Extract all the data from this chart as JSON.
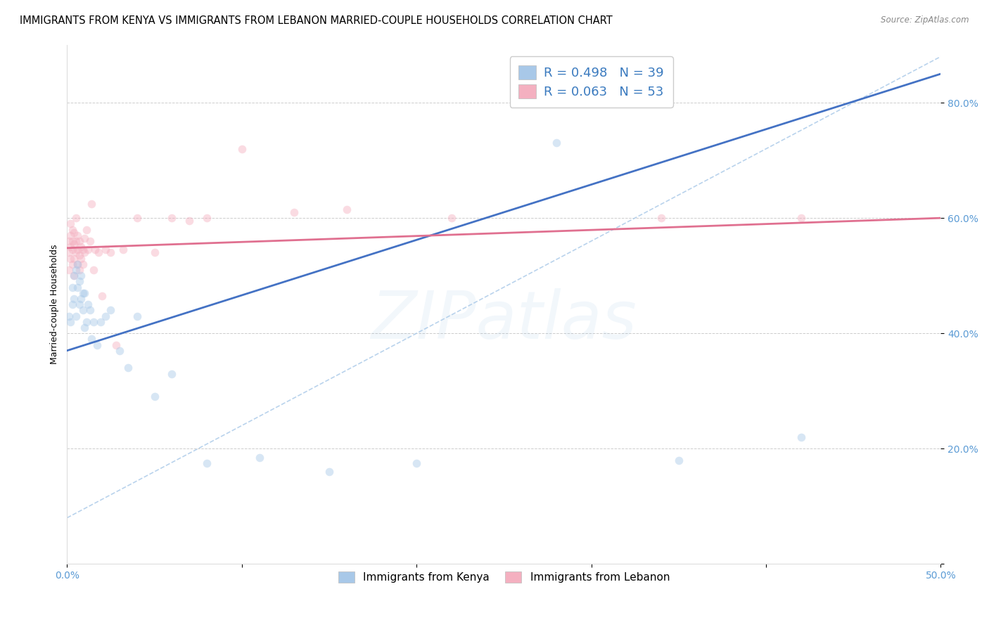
{
  "title": "IMMIGRANTS FROM KENYA VS IMMIGRANTS FROM LEBANON MARRIED-COUPLE HOUSEHOLDS CORRELATION CHART",
  "source": "Source: ZipAtlas.com",
  "ylabel": "Married-couple Households",
  "xlim": [
    0.0,
    0.5
  ],
  "ylim": [
    0.0,
    0.9
  ],
  "xtick_positions": [
    0.0,
    0.1,
    0.2,
    0.3,
    0.4,
    0.5
  ],
  "xticklabels": [
    "0.0%",
    "",
    "",
    "",
    "",
    "50.0%"
  ],
  "ytick_positions": [
    0.0,
    0.2,
    0.4,
    0.6,
    0.8
  ],
  "yticklabels": [
    "",
    "20.0%",
    "40.0%",
    "60.0%",
    "80.0%"
  ],
  "kenya_R": 0.498,
  "kenya_N": 39,
  "lebanon_R": 0.063,
  "lebanon_N": 53,
  "kenya_color": "#a8c8e8",
  "lebanon_color": "#f4b0c0",
  "kenya_line_color": "#4472c4",
  "lebanon_line_color": "#e07090",
  "diagonal_color": "#a8c8e8",
  "kenya_x": [
    0.001,
    0.002,
    0.003,
    0.003,
    0.004,
    0.004,
    0.005,
    0.005,
    0.006,
    0.006,
    0.007,
    0.007,
    0.008,
    0.008,
    0.009,
    0.009,
    0.01,
    0.01,
    0.011,
    0.012,
    0.013,
    0.014,
    0.015,
    0.017,
    0.019,
    0.022,
    0.025,
    0.03,
    0.035,
    0.04,
    0.05,
    0.06,
    0.08,
    0.11,
    0.15,
    0.2,
    0.28,
    0.35,
    0.42
  ],
  "kenya_y": [
    0.43,
    0.42,
    0.48,
    0.45,
    0.5,
    0.46,
    0.51,
    0.43,
    0.48,
    0.52,
    0.45,
    0.49,
    0.46,
    0.5,
    0.47,
    0.44,
    0.41,
    0.47,
    0.42,
    0.45,
    0.44,
    0.39,
    0.42,
    0.38,
    0.42,
    0.43,
    0.44,
    0.37,
    0.34,
    0.43,
    0.29,
    0.33,
    0.175,
    0.185,
    0.16,
    0.175,
    0.73,
    0.18,
    0.22
  ],
  "lebanon_x": [
    0.001,
    0.001,
    0.001,
    0.002,
    0.002,
    0.002,
    0.002,
    0.003,
    0.003,
    0.003,
    0.003,
    0.004,
    0.004,
    0.004,
    0.004,
    0.005,
    0.005,
    0.005,
    0.006,
    0.006,
    0.006,
    0.007,
    0.007,
    0.007,
    0.008,
    0.008,
    0.009,
    0.009,
    0.01,
    0.01,
    0.011,
    0.012,
    0.013,
    0.014,
    0.015,
    0.016,
    0.018,
    0.02,
    0.022,
    0.025,
    0.028,
    0.032,
    0.04,
    0.05,
    0.06,
    0.07,
    0.08,
    0.1,
    0.13,
    0.16,
    0.22,
    0.34,
    0.42
  ],
  "lebanon_y": [
    0.54,
    0.56,
    0.51,
    0.53,
    0.55,
    0.57,
    0.59,
    0.52,
    0.545,
    0.56,
    0.58,
    0.5,
    0.53,
    0.555,
    0.575,
    0.54,
    0.56,
    0.6,
    0.52,
    0.545,
    0.57,
    0.51,
    0.535,
    0.56,
    0.53,
    0.55,
    0.52,
    0.545,
    0.54,
    0.565,
    0.58,
    0.545,
    0.56,
    0.625,
    0.51,
    0.545,
    0.54,
    0.465,
    0.545,
    0.54,
    0.38,
    0.545,
    0.6,
    0.54,
    0.6,
    0.595,
    0.6,
    0.72,
    0.61,
    0.615,
    0.6,
    0.6,
    0.6
  ],
  "title_fontsize": 10.5,
  "axis_label_fontsize": 9,
  "tick_fontsize": 10,
  "legend_fontsize": 13,
  "marker_size": 70,
  "marker_alpha": 0.45,
  "watermark_color": "#5b9bd5",
  "watermark_alpha": 0.08
}
